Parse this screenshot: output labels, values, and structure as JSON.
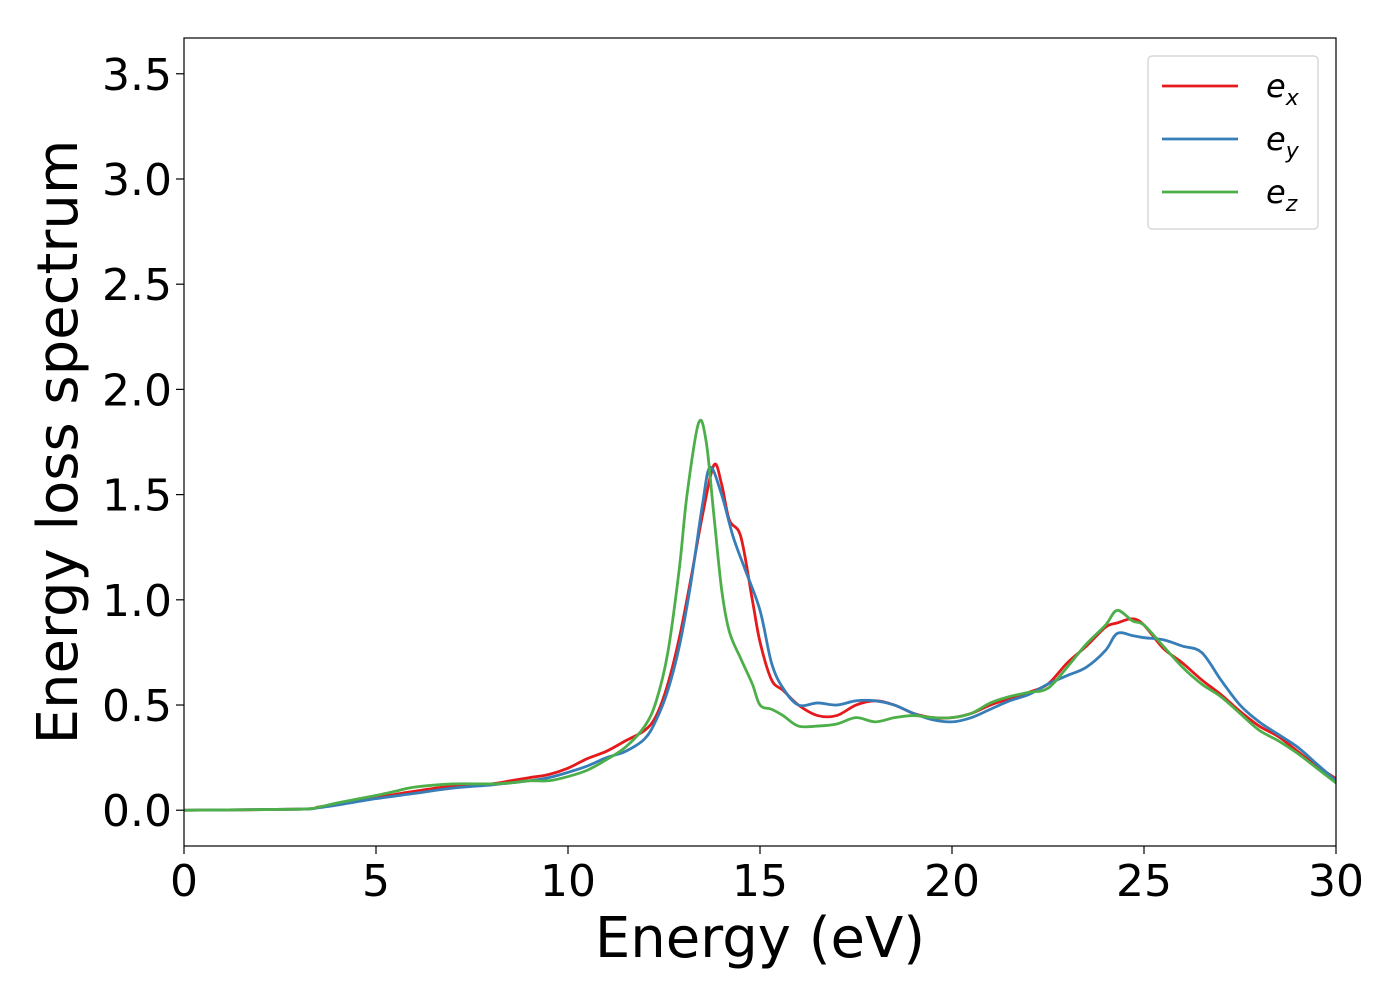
{
  "chart_data": {
    "type": "line",
    "title": "",
    "xlabel": "Energy (eV)",
    "ylabel": "Energy loss spectrum",
    "xlim": [
      0,
      30
    ],
    "ylim": [
      -0.17,
      3.67
    ],
    "xticks": [
      0,
      5,
      10,
      15,
      20,
      25,
      30
    ],
    "xtick_labels": [
      "0",
      "5",
      "10",
      "15",
      "20",
      "25",
      "30"
    ],
    "yticks": [
      0.0,
      0.5,
      1.0,
      1.5,
      2.0,
      2.5,
      3.0,
      3.5
    ],
    "ytick_labels": [
      "0.0",
      "0.5",
      "1.0",
      "1.5",
      "2.0",
      "2.5",
      "3.0",
      "3.5"
    ],
    "grid": false,
    "legend_position": "top-right",
    "series": [
      {
        "name": "e_x",
        "label_base": "e",
        "label_sub": "x",
        "color": "#e41a1c",
        "x": [
          0,
          3,
          3.5,
          4,
          5,
          6,
          7,
          8,
          8.5,
          9,
          9.5,
          10,
          10.5,
          11,
          11.5,
          12,
          12.3,
          12.6,
          12.9,
          13.2,
          13.5,
          13.8,
          14,
          14.2,
          14.5,
          14.8,
          15,
          15.3,
          15.6,
          16,
          16.5,
          17,
          17.5,
          18,
          18.5,
          19,
          19.5,
          20,
          20.5,
          21,
          21.5,
          22,
          22.5,
          23,
          23.5,
          24,
          24.3,
          24.7,
          25,
          25.5,
          26,
          26.5,
          27,
          27.5,
          28,
          28.5,
          29,
          29.5,
          30
        ],
        "y": [
          0.0,
          0.005,
          0.015,
          0.03,
          0.06,
          0.09,
          0.115,
          0.125,
          0.14,
          0.155,
          0.17,
          0.2,
          0.245,
          0.28,
          0.33,
          0.38,
          0.45,
          0.6,
          0.82,
          1.1,
          1.4,
          1.64,
          1.55,
          1.38,
          1.3,
          1.0,
          0.8,
          0.62,
          0.57,
          0.5,
          0.45,
          0.45,
          0.5,
          0.52,
          0.5,
          0.46,
          0.44,
          0.44,
          0.46,
          0.5,
          0.53,
          0.56,
          0.6,
          0.7,
          0.78,
          0.87,
          0.89,
          0.91,
          0.88,
          0.77,
          0.7,
          0.62,
          0.55,
          0.47,
          0.4,
          0.35,
          0.28,
          0.21,
          0.15
        ]
      },
      {
        "name": "e_y",
        "label_base": "e",
        "label_sub": "y",
        "color": "#377eb8",
        "x": [
          0,
          3,
          3.5,
          4,
          5,
          6,
          7,
          8,
          8.5,
          9,
          9.5,
          10,
          10.5,
          11,
          11.5,
          12,
          12.3,
          12.6,
          12.9,
          13.2,
          13.5,
          13.7,
          14,
          14.3,
          14.6,
          15,
          15.3,
          15.6,
          16,
          16.5,
          17,
          17.5,
          18,
          18.5,
          19,
          19.5,
          20,
          20.5,
          21,
          21.5,
          22,
          22.5,
          23,
          23.5,
          24,
          24.3,
          24.7,
          25,
          25.5,
          26,
          26.5,
          27,
          27.5,
          28,
          28.5,
          29,
          29.5,
          30
        ],
        "y": [
          0.0,
          0.005,
          0.012,
          0.025,
          0.055,
          0.08,
          0.105,
          0.12,
          0.13,
          0.14,
          0.155,
          0.18,
          0.21,
          0.25,
          0.28,
          0.34,
          0.43,
          0.57,
          0.78,
          1.08,
          1.45,
          1.63,
          1.5,
          1.3,
          1.15,
          0.95,
          0.7,
          0.58,
          0.5,
          0.51,
          0.5,
          0.52,
          0.52,
          0.5,
          0.46,
          0.43,
          0.42,
          0.44,
          0.48,
          0.52,
          0.55,
          0.6,
          0.64,
          0.68,
          0.76,
          0.84,
          0.83,
          0.82,
          0.81,
          0.78,
          0.75,
          0.62,
          0.5,
          0.42,
          0.36,
          0.3,
          0.22,
          0.14
        ]
      },
      {
        "name": "e_z",
        "label_base": "e",
        "label_sub": "z",
        "color": "#4daf4a",
        "x": [
          0,
          3,
          3.5,
          4,
          5,
          5.5,
          6,
          7,
          8,
          8.5,
          9,
          9.5,
          10,
          10.5,
          11,
          11.5,
          12,
          12.3,
          12.6,
          12.9,
          13.1,
          13.4,
          13.6,
          13.8,
          14,
          14.2,
          14.5,
          14.8,
          15,
          15.3,
          15.6,
          16,
          16.5,
          17,
          17.5,
          18,
          18.5,
          19,
          19.5,
          20,
          20.5,
          21,
          21.5,
          22,
          22.5,
          23,
          23.5,
          24,
          24.3,
          24.7,
          25,
          25.5,
          26,
          26.5,
          27,
          27.5,
          28,
          28.5,
          29,
          29.5,
          30
        ],
        "y": [
          0.0,
          0.005,
          0.015,
          0.035,
          0.07,
          0.09,
          0.11,
          0.125,
          0.125,
          0.13,
          0.14,
          0.14,
          0.16,
          0.19,
          0.24,
          0.3,
          0.4,
          0.52,
          0.75,
          1.15,
          1.5,
          1.84,
          1.75,
          1.4,
          1.05,
          0.85,
          0.72,
          0.6,
          0.5,
          0.48,
          0.45,
          0.4,
          0.4,
          0.41,
          0.44,
          0.42,
          0.44,
          0.45,
          0.44,
          0.44,
          0.46,
          0.51,
          0.54,
          0.56,
          0.58,
          0.68,
          0.79,
          0.88,
          0.95,
          0.9,
          0.88,
          0.78,
          0.68,
          0.6,
          0.54,
          0.46,
          0.38,
          0.33,
          0.27,
          0.2,
          0.13
        ]
      }
    ]
  }
}
